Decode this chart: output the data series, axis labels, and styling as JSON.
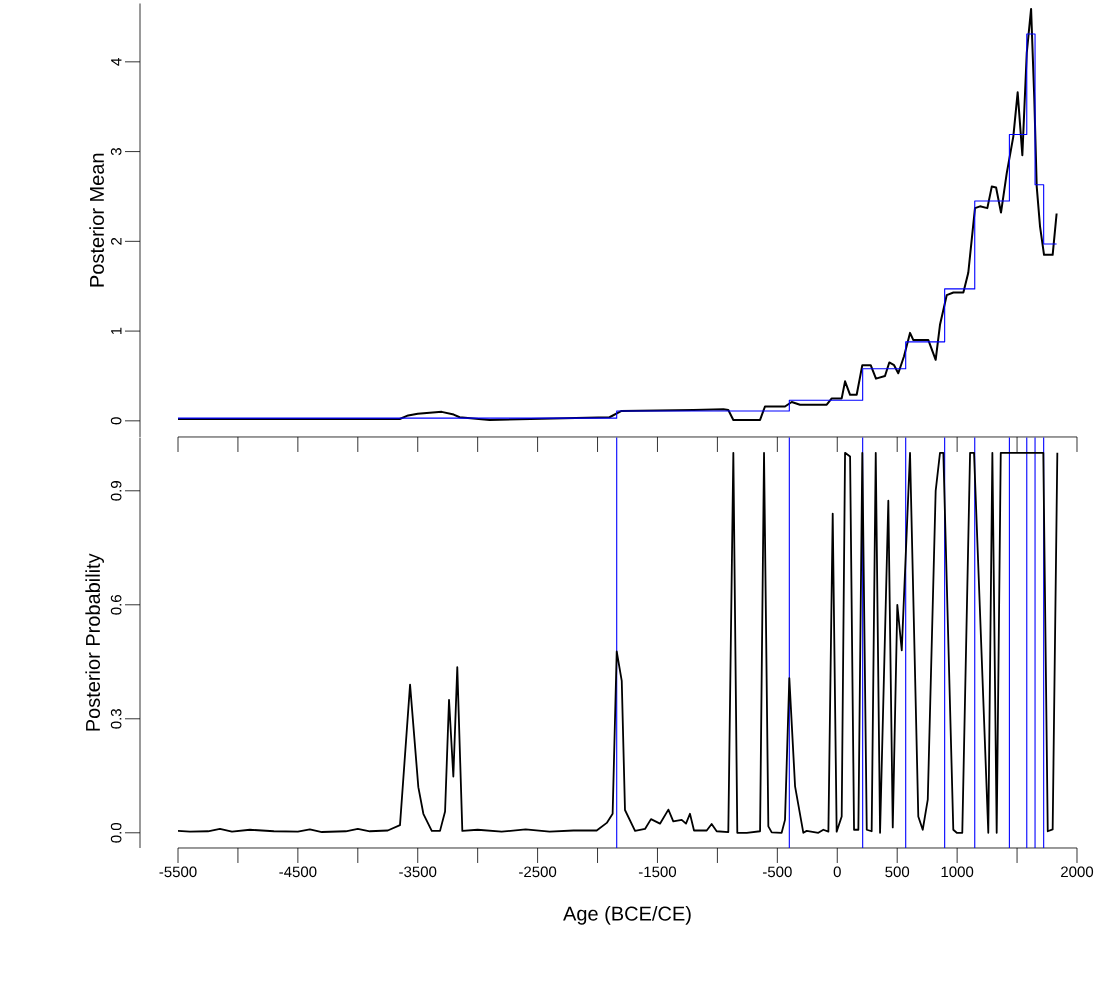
{
  "chart_data": [
    {
      "type": "line",
      "ylabel": "Posterior Mean",
      "xlim": [
        -5500,
        2000
      ],
      "xticks": [
        -5500,
        -5000,
        -4500,
        -4000,
        -3500,
        -3000,
        -2500,
        -2000,
        -1500,
        -1000,
        -500,
        0,
        500,
        1000,
        1500,
        2000
      ],
      "ylim": [
        -0.18,
        4.65
      ],
      "yticks": [
        0,
        1,
        2,
        3,
        4
      ],
      "tick_labels": "y",
      "series": [
        {
          "color": "#000000",
          "x": [
            -5500,
            -3650,
            -3580,
            -3500,
            -3300,
            -3200,
            -3150,
            -2900,
            -1900,
            -1800,
            -1200,
            -950,
            -909,
            -867,
            -644,
            -603,
            -436,
            -380,
            -311,
            -88,
            -46,
            37,
            65,
            107,
            162,
            209,
            279,
            323,
            398,
            434,
            474,
            509,
            557,
            607,
            635,
            760,
            821,
            857,
            913,
            969,
            1052,
            1093,
            1149,
            1191,
            1252,
            1289,
            1325,
            1366,
            1414,
            1469,
            1505,
            1544,
            1581,
            1617,
            1644,
            1664,
            1692,
            1725,
            1797,
            1830
          ],
          "values": [
            0.02,
            0.02,
            0.06,
            0.08,
            0.1,
            0.07,
            0.04,
            0.01,
            0.04,
            0.11,
            0.12,
            0.13,
            0.12,
            0.01,
            0.01,
            0.16,
            0.16,
            0.21,
            0.18,
            0.18,
            0.25,
            0.25,
            0.44,
            0.29,
            0.29,
            0.62,
            0.62,
            0.47,
            0.5,
            0.65,
            0.62,
            0.53,
            0.72,
            0.98,
            0.9,
            0.9,
            0.68,
            1.07,
            1.4,
            1.43,
            1.43,
            1.65,
            2.37,
            2.39,
            2.37,
            2.61,
            2.6,
            2.32,
            2.76,
            3.17,
            3.66,
            2.96,
            4.1,
            4.59,
            3.58,
            2.61,
            2.16,
            1.85,
            1.85,
            2.31
          ]
        },
        {
          "type": "step",
          "color": "#0000ff",
          "x": [
            -5500,
            -1840,
            -400,
            212,
            571,
            896,
            1147,
            1436,
            1581,
            1650,
            1722,
            1830
          ],
          "values": [
            0.03,
            0.11,
            0.23,
            0.58,
            0.88,
            1.47,
            2.45,
            3.19,
            4.31,
            2.63,
            1.97,
            1.97
          ]
        }
      ]
    },
    {
      "type": "line",
      "ylabel": "Posterior Probability",
      "xlabel": "Age (BCE/CE)",
      "xlim": [
        -5500,
        2000
      ],
      "xticks": [
        -5500,
        {
          "value": -5000,
          "label": null
        },
        -4500,
        {
          "value": -4000,
          "label": null
        },
        -3500,
        {
          "value": -3000,
          "label": null
        },
        -2500,
        {
          "value": -2000,
          "label": null
        },
        -1500,
        {
          "value": -1000,
          "label": null
        },
        -500,
        0,
        500,
        1000,
        {
          "value": 1500,
          "label": null
        },
        2000
      ],
      "ylim": [
        -0.04,
        1.04
      ],
      "yticks": [
        {
          "value": 0,
          "label": "0.0"
        },
        0.3,
        0.6,
        0.9
      ],
      "series": [
        {
          "color": "#000000",
          "x": [
            -5500,
            -5400,
            -5250,
            -5150,
            -5050,
            -4900,
            -4700,
            -4500,
            -4400,
            -4300,
            -4100,
            -4000,
            -3900,
            -3750,
            -3648,
            -3564,
            -3495,
            -3453,
            -3383,
            -3314,
            -3272,
            -3239,
            -3203,
            -3170,
            -3128,
            -3000,
            -2800,
            -2600,
            -2400,
            -2200,
            -2007,
            -1923,
            -1874,
            -1840,
            -1798,
            -1771,
            -1687,
            -1604,
            -1554,
            -1479,
            -1409,
            -1368,
            -1298,
            -1262,
            -1229,
            -1195,
            -1089,
            -1048,
            -1006,
            -909,
            -867,
            -834,
            -755,
            -644,
            -611,
            -575,
            -547,
            -464,
            -436,
            -400,
            -352,
            -283,
            -255,
            -158,
            -116,
            -74,
            -38,
            -5,
            37,
            65,
            107,
            140,
            176,
            209,
            246,
            287,
            321,
            357,
            426,
            463,
            501,
            538,
            607,
            676,
            713,
            755,
            821,
            857,
            885,
            968,
            997,
            1043,
            1108,
            1141,
            1260,
            1294,
            1330,
            1364,
            1719,
            1756,
            1797,
            1836
          ],
          "values": [
            0.005,
            0.003,
            0.004,
            0.01,
            0.003,
            0.008,
            0.004,
            0.003,
            0.009,
            0.002,
            0.004,
            0.01,
            0.004,
            0.006,
            0.02,
            0.39,
            0.12,
            0.05,
            0.005,
            0.005,
            0.056,
            0.35,
            0.148,
            0.436,
            0.005,
            0.008,
            0.003,
            0.009,
            0.003,
            0.006,
            0.006,
            0.026,
            0.05,
            0.477,
            0.4,
            0.06,
            0.005,
            0.01,
            0.036,
            0.024,
            0.061,
            0.03,
            0.034,
            0.024,
            0.05,
            0.006,
            0.006,
            0.023,
            0.004,
            0.002,
            1.0,
            0.0,
            0.0,
            0.004,
            1.0,
            0.017,
            0.001,
            0.0,
            0.034,
            0.407,
            0.122,
            0.0,
            0.005,
            0.0,
            0.008,
            0.003,
            0.84,
            0.003,
            0.043,
            1.0,
            0.99,
            0.008,
            0.008,
            1.0,
            0.008,
            0.004,
            1.0,
            0.0,
            0.874,
            0.014,
            0.6,
            0.48,
            1.0,
            0.043,
            0.008,
            0.087,
            0.9,
            1.0,
            1.0,
            0.008,
            0.0,
            0.0,
            1.0,
            1.0,
            0.0,
            1.0,
            0.0,
            1.0,
            1.0,
            0.004,
            0.009,
            1.0
          ]
        }
      ],
      "ref_lines": [
        {
          "axis": "x",
          "value": -1840,
          "color": "#0000ff"
        },
        {
          "axis": "x",
          "value": -400,
          "color": "#0000ff"
        },
        {
          "axis": "x",
          "value": 212,
          "color": "#0000ff"
        },
        {
          "axis": "x",
          "value": 571,
          "color": "#0000ff"
        },
        {
          "axis": "x",
          "value": 896,
          "color": "#0000ff"
        },
        {
          "axis": "x",
          "value": 1147,
          "color": "#0000ff"
        },
        {
          "axis": "x",
          "value": 1436,
          "color": "#0000ff"
        },
        {
          "axis": "x",
          "value": 1581,
          "color": "#0000ff"
        },
        {
          "axis": "x",
          "value": 1650,
          "color": "#0000ff"
        },
        {
          "axis": "x",
          "value": 1722,
          "color": "#0000ff"
        }
      ]
    }
  ]
}
